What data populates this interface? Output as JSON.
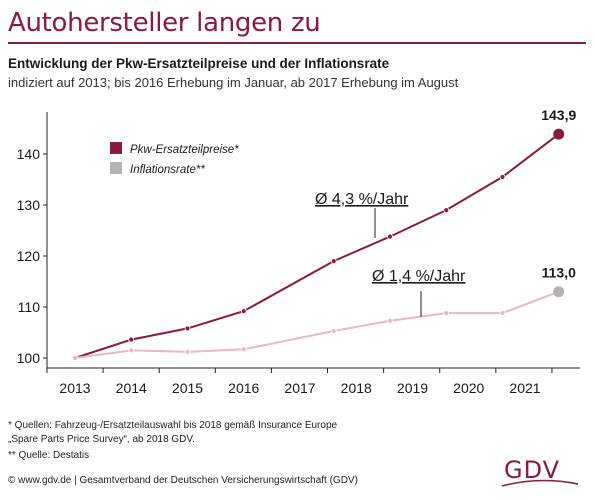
{
  "header": {
    "title": "Autohersteller langen zu",
    "subtitle": "Entwicklung der Pkw-Ersatzteilpreise und der Inflationsrate",
    "note": "indiziert auf 2013; bis 2016 Erhebung im Januar, ab 2017 Erhebung im August"
  },
  "colors": {
    "brand": "#8b1a3e",
    "series1": "#8b1a3e",
    "series2": "#e8b8bf",
    "series2_marker": "#b3b3b3",
    "series2_legend": "#b3b3b3"
  },
  "chart_data": {
    "type": "line",
    "xlim": [
      2013,
      2022
    ],
    "ylim": [
      98,
      146
    ],
    "yticks": [
      100,
      110,
      120,
      130,
      140
    ],
    "xticks": [
      2013,
      2014,
      2015,
      2016,
      2017,
      2018,
      2019,
      2020,
      2021
    ],
    "grid": false,
    "legend": "top-left",
    "series": [
      {
        "name": "Pkw-Ersatzteilpreise*",
        "x": [
          2013.0,
          2014.0,
          2015.0,
          2016.0,
          2017.6,
          2018.6,
          2019.6,
          2020.6,
          2021.6
        ],
        "y": [
          100,
          103.6,
          105.8,
          109.2,
          119.0,
          123.8,
          129.0,
          135.5,
          143.9
        ]
      },
      {
        "name": "Inflationsrate**",
        "x": [
          2013.0,
          2014.0,
          2015.0,
          2016.0,
          2017.6,
          2018.6,
          2019.6,
          2020.6,
          2021.6
        ],
        "y": [
          100,
          101.5,
          101.2,
          101.7,
          105.3,
          107.3,
          108.8,
          108.8,
          113.0
        ]
      }
    ],
    "end_labels": [
      "143,9",
      "113,0"
    ],
    "annotations": [
      {
        "text": "Ø 4,3 %/Jahr",
        "series": 0
      },
      {
        "text": "Ø 1,4 %/Jahr",
        "series": 1
      }
    ]
  },
  "footnotes": {
    "f1": "* Quellen: Fahrzeug-/Ersatzteilauswahl bis 2018 gemäß Insurance Europe",
    "f2": "„Spare Parts Price Survey“, ab 2018 GDV.",
    "f3": "** Quelle: Destatis"
  },
  "source": "© www.gdv.de | Gesamtverband der Deutschen Versicherungswirtschaft (GDV)",
  "logo": {
    "text": "GDV"
  }
}
